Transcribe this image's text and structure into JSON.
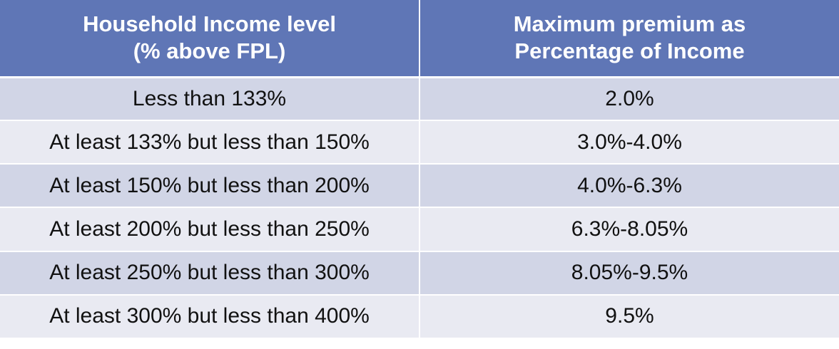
{
  "chart_data": {
    "type": "table",
    "columns": [
      [
        "Household Income level",
        "(% above FPL)"
      ],
      [
        "Maximum premium as",
        "Percentage of Income"
      ]
    ],
    "rows": [
      [
        "Less than 133%",
        "2.0%"
      ],
      [
        "At least 133% but less than 150%",
        "3.0%-4.0%"
      ],
      [
        "At least 150% but less than 200%",
        "4.0%-6.3%"
      ],
      [
        "At least 200% but less than 250%",
        "6.3%-8.05%"
      ],
      [
        "At least 250% but less than 300%",
        "8.05%-9.5%"
      ],
      [
        "At least 300% but less than 400%",
        "9.5%"
      ]
    ]
  },
  "colors": {
    "header_bg": "#5f76b6",
    "header_text": "#ffffff",
    "row_band_dark": "#d1d5e6",
    "row_band_light": "#e9eaf2"
  }
}
